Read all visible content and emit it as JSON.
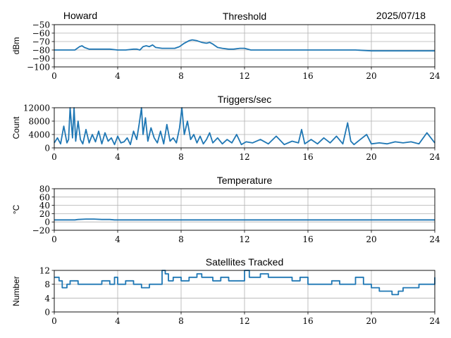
{
  "header": {
    "station": "Howard",
    "date": "2025/07/18"
  },
  "chart_data": [
    {
      "type": "line",
      "title": "Threshold",
      "xlabel": "",
      "ylabel": "dBm",
      "xlim": [
        0,
        24
      ],
      "ylim": [
        -100,
        -50
      ],
      "grid": true,
      "xticks": [
        "0",
        "4",
        "8",
        "12",
        "16",
        "20",
        "24"
      ],
      "yticks": [
        "−100",
        "−90",
        "−80",
        "−70",
        "−60",
        "−50"
      ],
      "series": [
        {
          "name": "Threshold",
          "color": "#1f77b4",
          "x": [
            0,
            0.5,
            1,
            1.3,
            1.6,
            1.75,
            1.9,
            2.2,
            2.5,
            3,
            3.5,
            4,
            4.5,
            5,
            5.2,
            5.4,
            5.6,
            5.8,
            6,
            6.2,
            6.4,
            6.8,
            7.2,
            7.6,
            7.9,
            8.2,
            8.5,
            8.7,
            9,
            9.3,
            9.6,
            9.8,
            10,
            10.3,
            10.6,
            11,
            11.3,
            11.7,
            12,
            12.4,
            13,
            14,
            15,
            16,
            17,
            18,
            19,
            20,
            21,
            22,
            23,
            24
          ],
          "y": [
            -80,
            -80,
            -80,
            -80,
            -76,
            -75,
            -77,
            -79,
            -79,
            -79,
            -79,
            -80,
            -80,
            -79,
            -79,
            -80,
            -76,
            -75,
            -76,
            -74,
            -77,
            -78,
            -78,
            -78,
            -76,
            -72,
            -69,
            -68,
            -69,
            -71,
            -72,
            -71,
            -73,
            -77,
            -78,
            -79,
            -79,
            -78,
            -78,
            -80,
            -80,
            -80,
            -80,
            -80,
            -80,
            -80,
            -80,
            -81,
            -81,
            -81,
            -81,
            -81
          ]
        }
      ]
    },
    {
      "type": "line",
      "title": "Triggers/sec",
      "xlabel": "",
      "ylabel": "Count",
      "xlim": [
        0,
        24
      ],
      "ylim": [
        0,
        12000
      ],
      "grid": true,
      "xticks": [
        "0",
        "4",
        "8",
        "12",
        "16",
        "20",
        "24"
      ],
      "yticks": [
        "0",
        "4000",
        "8000",
        "12000"
      ],
      "series": [
        {
          "name": "Triggers/sec",
          "color": "#1f77b4",
          "x": [
            0,
            0.2,
            0.4,
            0.6,
            0.8,
            0.9,
            1,
            1.15,
            1.25,
            1.35,
            1.5,
            1.65,
            1.8,
            2,
            2.2,
            2.4,
            2.6,
            2.8,
            3,
            3.2,
            3.4,
            3.6,
            3.8,
            4,
            4.2,
            4.4,
            4.6,
            4.8,
            5,
            5.2,
            5.35,
            5.5,
            5.6,
            5.75,
            5.9,
            6.1,
            6.3,
            6.5,
            6.7,
            6.9,
            7.1,
            7.3,
            7.5,
            7.7,
            7.9,
            8.05,
            8.2,
            8.4,
            8.6,
            8.8,
            9,
            9.2,
            9.4,
            9.6,
            9.8,
            10,
            10.3,
            10.6,
            10.9,
            11.2,
            11.5,
            11.8,
            12.1,
            12.5,
            13,
            13.5,
            14,
            14.5,
            15,
            15.4,
            15.6,
            15.8,
            16.2,
            16.6,
            17,
            17.4,
            17.8,
            18.2,
            18.5,
            18.7,
            18.9,
            19.3,
            19.7,
            20,
            20.5,
            21,
            21.5,
            22,
            22.5,
            23,
            23.5,
            24
          ],
          "y": [
            1500,
            3000,
            1200,
            6500,
            1500,
            2500,
            12000,
            3000,
            12000,
            2000,
            8000,
            2500,
            1200,
            5500,
            1500,
            4000,
            1800,
            5000,
            1200,
            4500,
            2000,
            3000,
            1000,
            3500,
            1500,
            1800,
            3000,
            1000,
            5000,
            2500,
            7000,
            12000,
            4000,
            9000,
            2000,
            6000,
            3000,
            1500,
            5000,
            1200,
            7000,
            2000,
            3000,
            1500,
            6000,
            12000,
            4000,
            8000,
            2500,
            4000,
            1500,
            3500,
            1200,
            2500,
            4500,
            1500,
            3000,
            1200,
            2500,
            1500,
            4000,
            1000,
            1800,
            1500,
            2500,
            1200,
            3500,
            1000,
            2000,
            1500,
            5500,
            1200,
            2500,
            1200,
            3000,
            1500,
            3500,
            1200,
            7500,
            2000,
            1000,
            2500,
            4000,
            1200,
            1500,
            1200,
            1800,
            1500,
            1800,
            1200,
            4500,
            1500
          ]
        }
      ]
    },
    {
      "type": "line",
      "title": "Temperature",
      "xlabel": "",
      "ylabel": "°C",
      "xlim": [
        0,
        24
      ],
      "ylim": [
        -20,
        80
      ],
      "grid": true,
      "xticks": [
        "0",
        "4",
        "8",
        "12",
        "16",
        "20",
        "24"
      ],
      "yticks": [
        "−20",
        "0",
        "20",
        "40",
        "60",
        "80"
      ],
      "series": [
        {
          "name": "Temperature",
          "color": "#1f77b4",
          "x": [
            0,
            1.3,
            1.5,
            2,
            2.5,
            3,
            3.5,
            3.8,
            4,
            8,
            12,
            16,
            20,
            24
          ],
          "y": [
            5,
            5,
            6,
            7,
            7,
            6,
            6,
            5,
            5,
            5,
            5,
            5,
            5,
            5
          ]
        }
      ]
    },
    {
      "type": "line",
      "title": "Satellites Tracked",
      "xlabel": "",
      "ylabel": "Number",
      "xlim": [
        0,
        24
      ],
      "ylim": [
        0,
        12
      ],
      "grid": true,
      "xticks": [
        "0",
        "4",
        "8",
        "12",
        "16",
        "20",
        "24"
      ],
      "yticks": [
        "0",
        "4",
        "8",
        "12"
      ],
      "series": [
        {
          "name": "Satellites",
          "color": "#1f77b4",
          "x": [
            0,
            0.3,
            0.5,
            0.8,
            1,
            1.5,
            2,
            2.5,
            3,
            3.5,
            3.8,
            4,
            4.5,
            5,
            5.5,
            6,
            6.5,
            6.8,
            7,
            7.2,
            7.5,
            8,
            8.5,
            9,
            9.3,
            9.6,
            10,
            10.5,
            11,
            11.5,
            12,
            12.3,
            12.6,
            13,
            13.5,
            14,
            14.5,
            15,
            15.5,
            16,
            16.5,
            17,
            17.5,
            18,
            18.5,
            19,
            19.5,
            20,
            20.5,
            21,
            21.3,
            21.7,
            22,
            22.5,
            23,
            23.5,
            24
          ],
          "y": [
            10,
            9,
            7,
            8,
            9,
            8,
            8,
            8,
            9,
            8,
            10,
            8,
            9,
            8,
            7,
            8,
            8,
            12,
            11,
            9,
            10,
            9,
            10,
            11,
            10,
            10,
            9,
            10,
            9,
            9,
            12,
            10,
            10,
            11,
            10,
            10,
            10,
            9,
            10,
            8,
            8,
            8,
            9,
            8,
            8,
            10,
            8,
            7,
            6,
            6,
            5,
            6,
            7,
            7,
            8,
            8,
            10
          ]
        }
      ]
    }
  ]
}
